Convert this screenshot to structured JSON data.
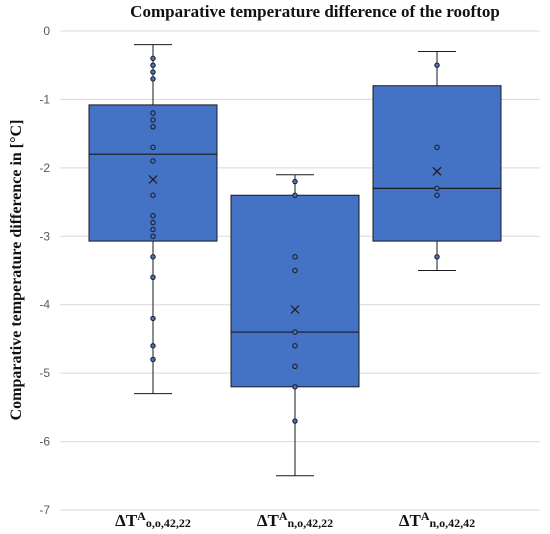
{
  "chart_data": {
    "type": "box",
    "title": "Comparative temperature difference of the rooftop",
    "xlabel": "",
    "ylabel": "Comparative temperature difference in [°C]",
    "ylim": [
      -7,
      0
    ],
    "yticks": [
      0,
      -1,
      -2,
      -3,
      -4,
      -5,
      -6,
      -7
    ],
    "grid": true,
    "box_color": "#4472C4",
    "categories": [
      {
        "base": "ΔT",
        "sup": "A",
        "sub": "o,o,42,22"
      },
      {
        "base": "ΔT",
        "sup": "A",
        "sub": "n,o,42,22"
      },
      {
        "base": "ΔT",
        "sup": "A",
        "sub": "n,o,42,42"
      }
    ],
    "boxes": [
      {
        "whisker_low": -5.3,
        "q1": -3.07,
        "median": -1.8,
        "q3": -1.08,
        "whisker_high": -0.2,
        "mean": -2.17,
        "points": [
          -0.4,
          -0.5,
          -0.6,
          -0.7,
          -1.2,
          -1.3,
          -1.4,
          -1.7,
          -1.9,
          -2.4,
          -2.7,
          -2.8,
          -2.9,
          -3.0,
          -3.3,
          -3.6,
          -4.2,
          -4.6,
          -4.8
        ]
      },
      {
        "whisker_low": -6.5,
        "q1": -5.2,
        "median": -4.4,
        "q3": -2.4,
        "whisker_high": -2.1,
        "mean": -4.07,
        "points": [
          -2.2,
          -2.4,
          -3.3,
          -3.5,
          -4.4,
          -4.6,
          -4.9,
          -5.2,
          -5.7
        ]
      },
      {
        "whisker_low": -3.5,
        "q1": -3.07,
        "median": -2.3,
        "q3": -0.8,
        "whisker_high": -0.3,
        "mean": -2.05,
        "points": [
          -0.5,
          -1.7,
          -2.3,
          -2.4,
          -3.3
        ]
      }
    ]
  }
}
